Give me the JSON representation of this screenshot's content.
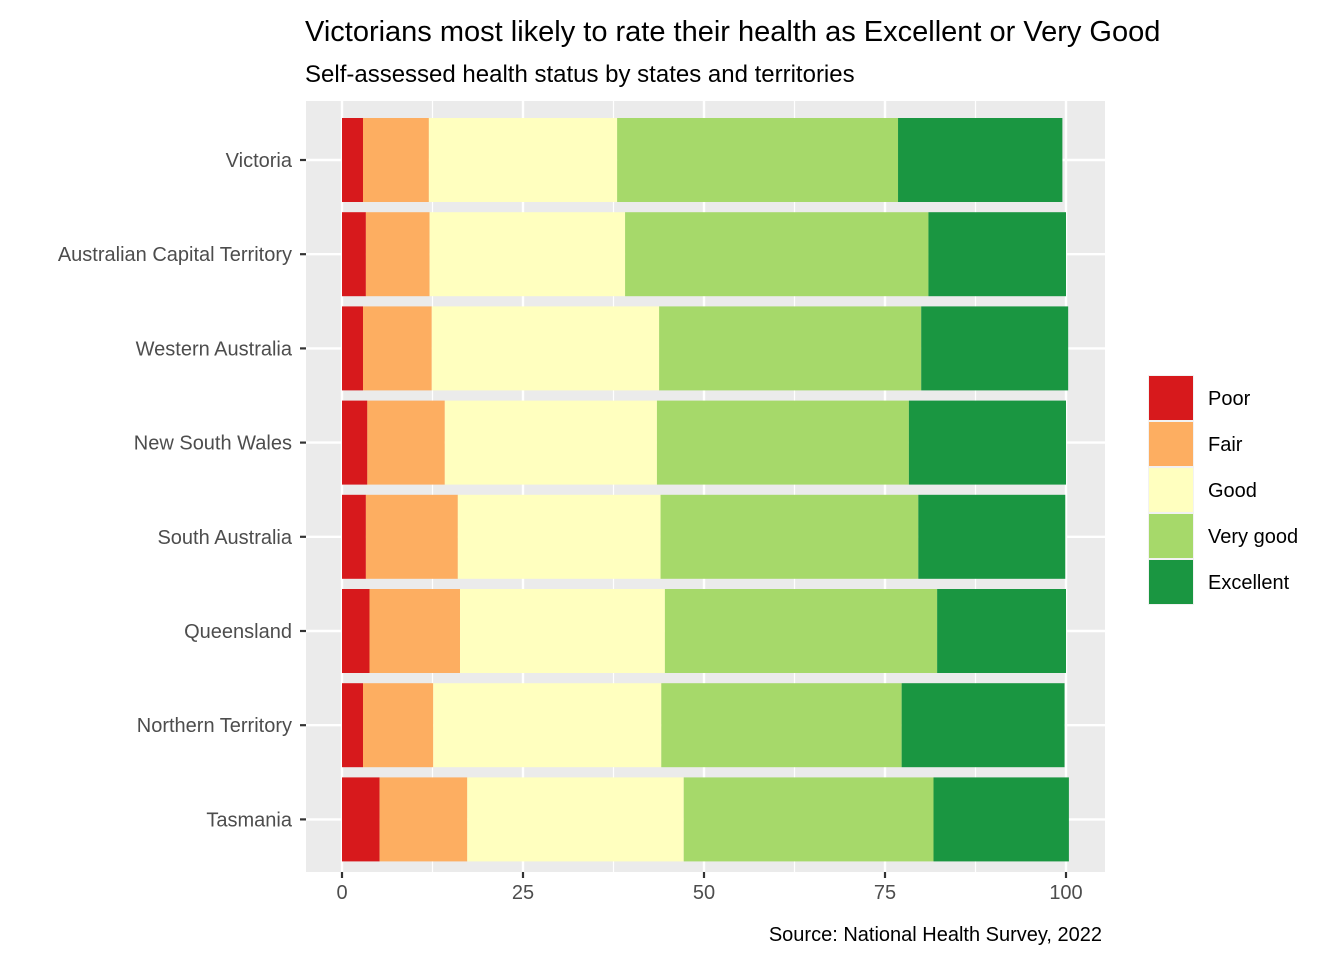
{
  "chart_data": {
    "type": "bar",
    "orientation": "horizontal",
    "stacked": true,
    "title": "Victorians most likely to rate their health as Excellent or Very Good",
    "subtitle": "Self-assessed health status by states and territories",
    "caption": "Source: National Health Survey, 2022",
    "xlim": [
      0,
      100
    ],
    "x_ticks": [
      0,
      25,
      50,
      75,
      100
    ],
    "grid": true,
    "legend_position": "right",
    "categories": [
      "Victoria",
      "Australian Capital Territory",
      "Western Australia",
      "New South Wales",
      "South Australia",
      "Queensland",
      "Northern Territory",
      "Tasmania"
    ],
    "series": [
      {
        "name": "Poor",
        "color": "#d7191c",
        "values": [
          2.9,
          3.3,
          2.9,
          3.5,
          3.3,
          3.8,
          2.9,
          5.2
        ]
      },
      {
        "name": "Fair",
        "color": "#fdae61",
        "values": [
          9.1,
          8.8,
          9.5,
          10.7,
          12.7,
          12.5,
          9.7,
          12.1
        ]
      },
      {
        "name": "Good",
        "color": "#ffffbf",
        "values": [
          26.0,
          27.0,
          31.4,
          29.3,
          28.0,
          28.3,
          31.5,
          29.9
        ]
      },
      {
        "name": "Very good",
        "color": "#a6d96a",
        "values": [
          38.8,
          41.9,
          36.2,
          34.8,
          35.6,
          37.6,
          33.2,
          34.5
        ]
      },
      {
        "name": "Excellent",
        "color": "#1a9641",
        "values": [
          22.7,
          19.0,
          20.3,
          21.7,
          20.3,
          17.8,
          22.5,
          18.7
        ]
      }
    ]
  }
}
